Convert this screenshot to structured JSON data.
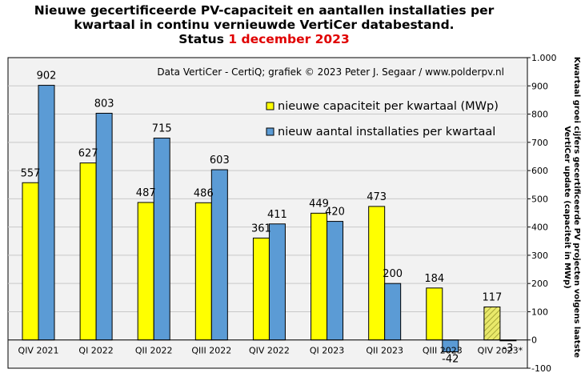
{
  "header": {
    "title_line1": "Nieuwe gecertificeerde PV-capaciteit en aantallen installaties per",
    "title_line2": "kwartaal in continu vernieuwde VertiCer databestand.",
    "status_label": "Status",
    "status_date": "1 december 2023"
  },
  "colors": {
    "capacity": "#ffff00",
    "installations": "#5b9bd5",
    "plot_background": "#f2f2f2",
    "status_date": "#e00000"
  },
  "chart_data": {
    "type": "bar",
    "title": "Nieuwe gecertificeerde PV-capaciteit en aantallen installaties per kwartaal in continu vernieuwde VertiCer databestand. Status 1 december 2023",
    "credit": "Data VertiCer - CertiQ; grafiek © 2023 Peter J. Segaar / www.polderpv.nl",
    "categories": [
      "QIV 2021",
      "QI 2022",
      "QII 2022",
      "QIII 2022",
      "QIV 2022",
      "QI 2023",
      "QII 2023",
      "QIII 2023",
      "QIV 2023*"
    ],
    "series": [
      {
        "name": "nieuwe capaciteit per kwartaal (MWp)",
        "values": [
          557,
          627,
          487,
          486,
          361,
          449,
          473,
          184,
          117
        ],
        "labels": [
          "557",
          "627",
          "487",
          "486",
          "361",
          "449",
          "473",
          "184",
          "117"
        ],
        "hatched_last": true
      },
      {
        "name": "nieuw aantal installaties per kwartaal",
        "values": [
          902,
          803,
          715,
          603,
          411,
          420,
          200,
          -42,
          -3
        ],
        "labels": [
          "902",
          "803",
          "715",
          "603",
          "411",
          "420",
          "200",
          "-42",
          "-3"
        ],
        "hatched_last": true
      }
    ],
    "y_axis": {
      "position": "right",
      "label": "Kwartaal groei cijfers gecertificeerde PV projecten volgens laatste VertiCer update (capaciteit in MWp)",
      "ylim": [
        -100,
        1000
      ],
      "ticks": [
        -100,
        0,
        100,
        200,
        300,
        400,
        500,
        600,
        700,
        800,
        900,
        1000
      ],
      "tick_labels": [
        "-100",
        "0",
        "100",
        "200",
        "300",
        "400",
        "500",
        "600",
        "700",
        "800",
        "900",
        "1.000"
      ]
    },
    "grid": true,
    "legend": "top-right"
  }
}
